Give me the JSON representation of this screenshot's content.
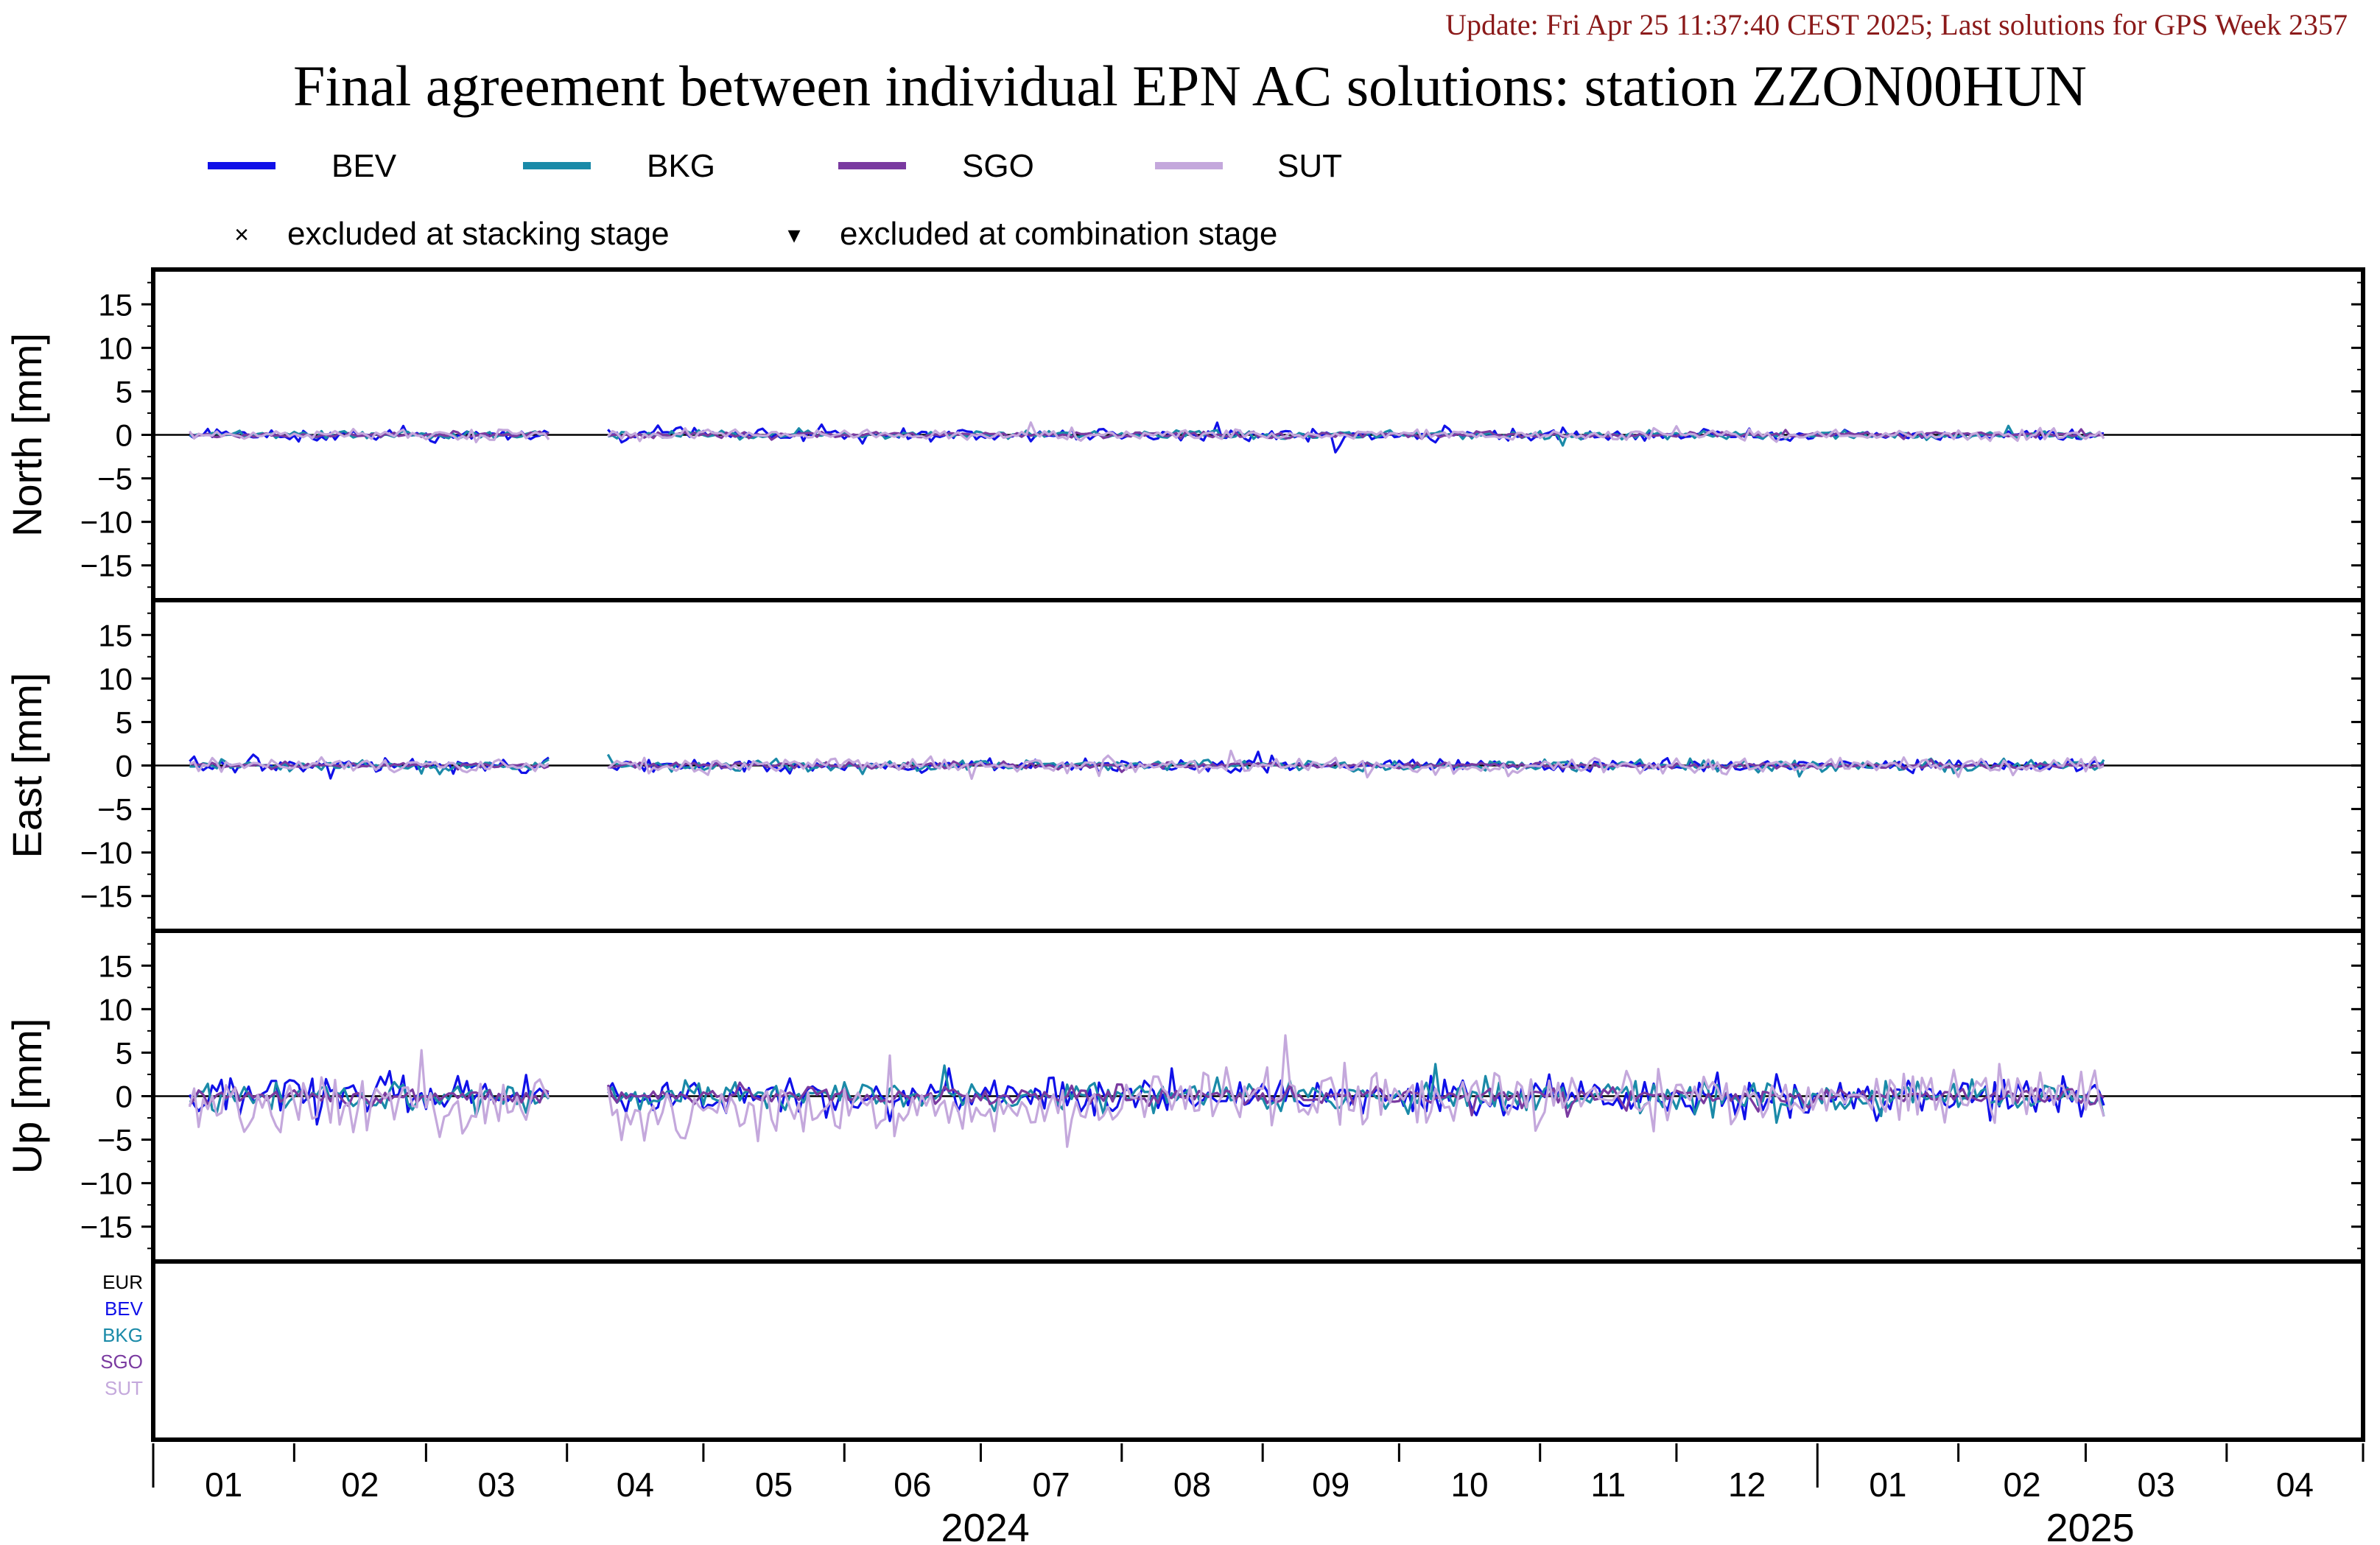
{
  "header": {
    "update_text": "Update: Fri Apr 25 11:37:40 CEST 2025; Last solutions for GPS Week 2357",
    "title": "Final agreement between individual EPN AC solutions: station ZZON00HUN"
  },
  "legend": {
    "series": [
      {
        "name": "BEV",
        "color": "#1010e8"
      },
      {
        "name": "BKG",
        "color": "#1a8aa8"
      },
      {
        "name": "SGO",
        "color": "#7a3aa0"
      },
      {
        "name": "SUT",
        "color": "#c4a8dc"
      }
    ],
    "markers": [
      {
        "symbol": "×",
        "label": "excluded at stacking stage"
      },
      {
        "symbol": "▾",
        "label": "excluded at combination stage"
      }
    ]
  },
  "chart_data": {
    "type": "line",
    "x_axis": {
      "months": [
        "01",
        "02",
        "03",
        "04",
        "05",
        "06",
        "07",
        "08",
        "09",
        "10",
        "11",
        "12",
        "01",
        "02",
        "03",
        "04"
      ],
      "years": [
        "2024",
        "2025"
      ],
      "range": [
        "2024-01-01",
        "2025-04-30"
      ]
    },
    "panels": [
      {
        "ylabel": "North [mm]",
        "ylim": [
          -19,
          19
        ],
        "yticks": [
          "15",
          "10",
          "5",
          "0",
          "−5",
          "−10",
          "−15"
        ],
        "amplitude_mm": {
          "BEV": 0.5,
          "BKG": 0.35,
          "SGO": 0.25,
          "SUT": 0.4
        }
      },
      {
        "ylabel": "East [mm]",
        "ylim": [
          -19,
          19
        ],
        "yticks": [
          "15",
          "10",
          "5",
          "0",
          "−5",
          "−10",
          "−15"
        ],
        "amplitude_mm": {
          "BEV": 0.5,
          "BKG": 0.45,
          "SGO": 0.25,
          "SUT": 0.6
        }
      },
      {
        "ylabel": "Up [mm]",
        "ylim": [
          -19,
          19
        ],
        "yticks": [
          "15",
          "10",
          "5",
          "0",
          "−5",
          "−10",
          "−15"
        ],
        "amplitude_mm": {
          "BEV": 1.6,
          "BKG": 1.2,
          "SGO": 0.7,
          "SUT": 2.3
        }
      }
    ],
    "series": [
      {
        "name": "BEV",
        "color": "#1010e8"
      },
      {
        "name": "BKG",
        "color": "#1a8aa8"
      },
      {
        "name": "SGO",
        "color": "#7a3aa0"
      },
      {
        "name": "SUT",
        "color": "#c4a8dc"
      }
    ],
    "data_gaps": [
      [
        "2024-03-28",
        "2024-04-10"
      ]
    ],
    "last_data": "2025-03-05",
    "availability_panel": {
      "labels": [
        {
          "text": "EUR",
          "color": "#000000"
        },
        {
          "text": "BEV",
          "color": "#1010e8"
        },
        {
          "text": "BKG",
          "color": "#1a8aa8"
        },
        {
          "text": "SGO",
          "color": "#7a3aa0"
        },
        {
          "text": "SUT",
          "color": "#c4a8dc"
        }
      ]
    },
    "grid": false
  }
}
